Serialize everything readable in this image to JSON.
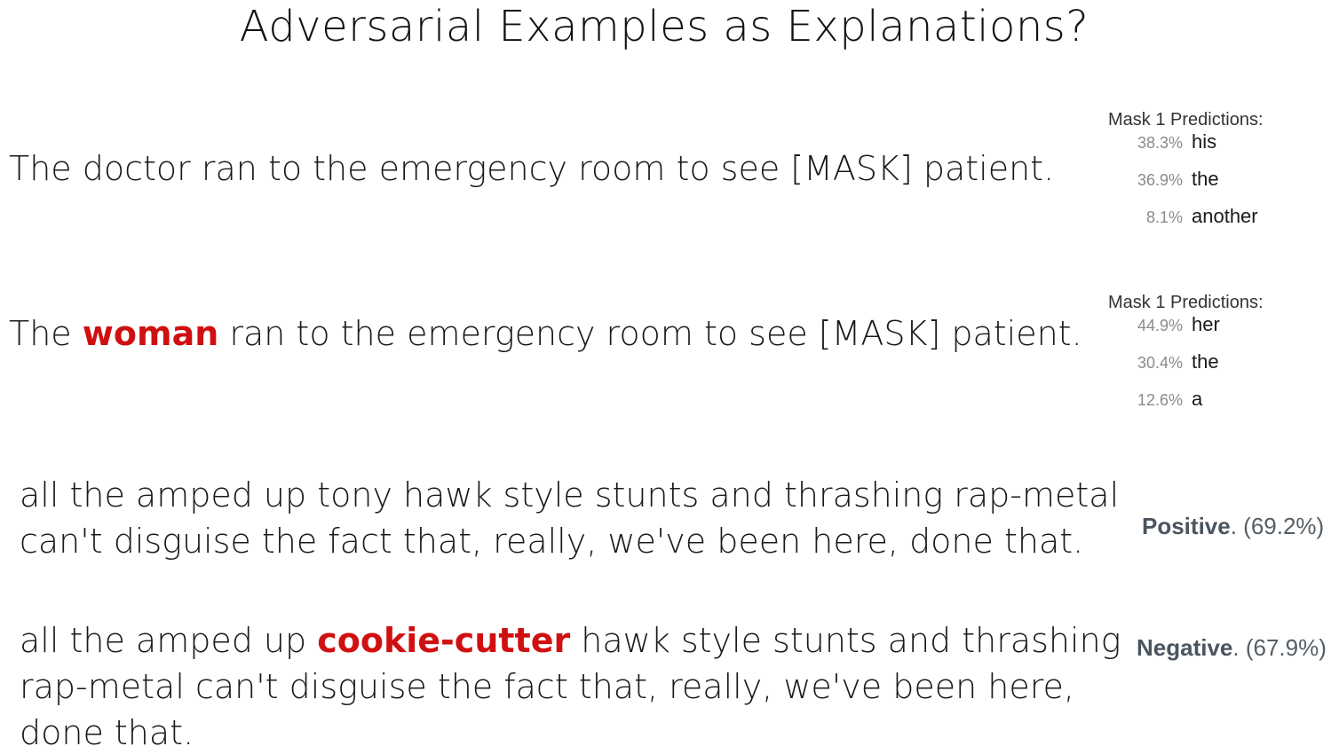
{
  "title": "Adversarial Examples as Explanations?",
  "mask_examples": [
    {
      "sentence_pre": "The doctor ran to the emergency room to see [MASK] patient.",
      "highlight": "",
      "sentence_post": "",
      "predictions_header": "Mask 1 Predictions:",
      "predictions": [
        {
          "pct": "38.3%",
          "word": "his"
        },
        {
          "pct": "36.9%",
          "word": "the"
        },
        {
          "pct": "8.1%",
          "word": "another"
        }
      ]
    },
    {
      "sentence_pre": "The ",
      "highlight": "woman",
      "sentence_post": " ran to the emergency room to see [MASK] patient.",
      "predictions_header": "Mask 1 Predictions:",
      "predictions": [
        {
          "pct": "44.9%",
          "word": "her"
        },
        {
          "pct": "30.4%",
          "word": "the"
        },
        {
          "pct": "12.6%",
          "word": "a"
        }
      ]
    }
  ],
  "sentiment_examples": [
    {
      "lines": [
        "all the amped up tony hawk style stunts and thrashing rap-metal",
        "can't disguise the fact that, really, we've been here, done that."
      ],
      "label": "Positive",
      "score": ". (69.2%)"
    },
    {
      "line1_pre": "all the amped up ",
      "line1_highlight": "cookie-cutter",
      "line1_post": " hawk style stunts and thrashing",
      "line2": "rap-metal can't disguise the fact that, really, we've been here,",
      "line3": "done that.",
      "label": "Negative",
      "score": ". (67.9%)"
    }
  ],
  "colors": {
    "highlight": "#d01010",
    "sentiment_label": "#4a5560",
    "percent_text": "#8a8a8a"
  }
}
